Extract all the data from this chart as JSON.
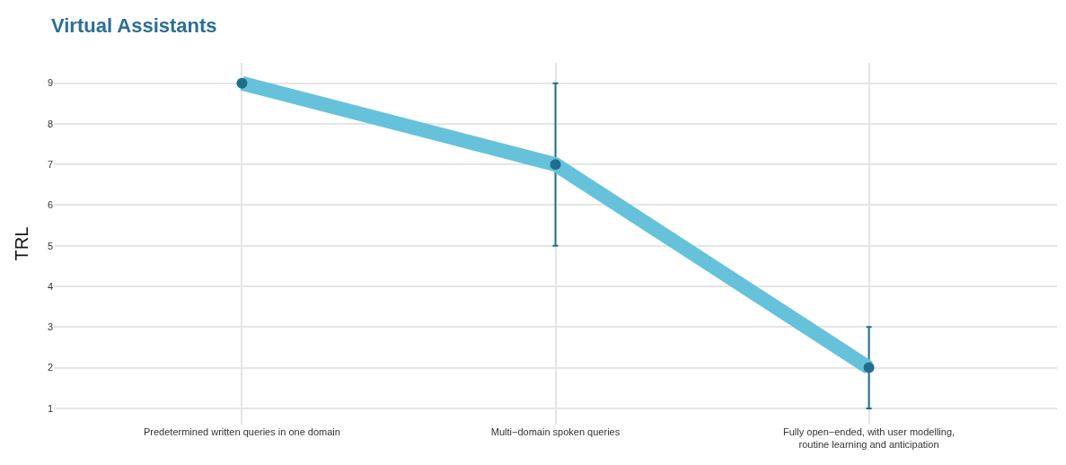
{
  "chart_data": {
    "type": "line",
    "title": "Virtual Assistants",
    "ylabel": "TRL",
    "categories": [
      "Predetermined written queries in one domain",
      "Multi−domain spoken queries",
      "Fully open−ended, with user modelling,\nroutine learning and anticipation"
    ],
    "series": [
      {
        "color": "#66c2da",
        "colors": [
          "#1f6e8e",
          "#1f6e8e",
          "#1f6e8e"
        ],
        "values": [
          9,
          7,
          2
        ],
        "errors": [
          null,
          2,
          1
        ]
      }
    ],
    "ylim": [
      0.6,
      9.5
    ],
    "yticks": [
      1,
      2,
      3,
      4,
      5,
      6,
      7,
      8,
      9
    ],
    "grid": true,
    "marker": "circle",
    "line_style": "solid"
  }
}
